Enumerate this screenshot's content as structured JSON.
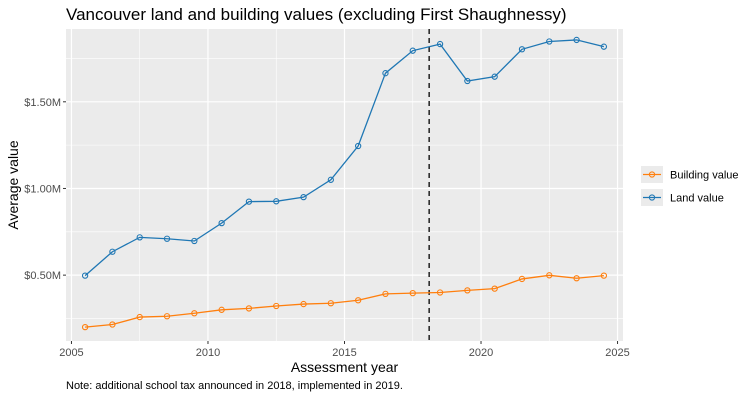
{
  "chart_data": {
    "type": "line",
    "title": "Vancouver land and building values (excluding First Shaughnessy)",
    "xlabel": "Assessment year",
    "ylabel": "Average value",
    "xlim": [
      2004.8,
      2025.2
    ],
    "ylim": [
      120000,
      1920000
    ],
    "x_ticks": [
      2005,
      2010,
      2015,
      2020,
      2025
    ],
    "x_tick_labels": [
      "2005",
      "2010",
      "2015",
      "2020",
      "2025"
    ],
    "y_ticks": [
      500000,
      1000000,
      1500000
    ],
    "y_tick_labels": [
      "$0.50M",
      "$1.00M",
      "$1.50M"
    ],
    "grid": true,
    "legend_position": "right",
    "reference_line": {
      "x": 2018.1,
      "style": "dashed"
    },
    "note": "Note: additional school tax announced in 2018, implemented in 2019.",
    "x": [
      2005.5,
      2006.5,
      2007.5,
      2008.5,
      2009.5,
      2010.5,
      2011.5,
      2012.5,
      2013.5,
      2014.5,
      2015.5,
      2016.5,
      2017.5,
      2018.5,
      2019.5,
      2020.5,
      2021.5,
      2022.5,
      2023.5,
      2024.5
    ],
    "series": [
      {
        "name": "Building value",
        "color": "#ff7f0e",
        "values": [
          200000,
          215000,
          258000,
          263000,
          280000,
          300000,
          308000,
          322000,
          333000,
          338000,
          355000,
          392000,
          396000,
          400000,
          412000,
          422000,
          478000,
          499000,
          482000,
          497000
        ]
      },
      {
        "name": "Land value",
        "color": "#1f77b4",
        "values": [
          497000,
          635000,
          718000,
          710000,
          697000,
          800000,
          924000,
          926000,
          950000,
          1050000,
          1245000,
          1665000,
          1795000,
          1833000,
          1620000,
          1645000,
          1803000,
          1848000,
          1857000,
          1818000
        ]
      }
    ],
    "legend_order": [
      0,
      1
    ]
  }
}
